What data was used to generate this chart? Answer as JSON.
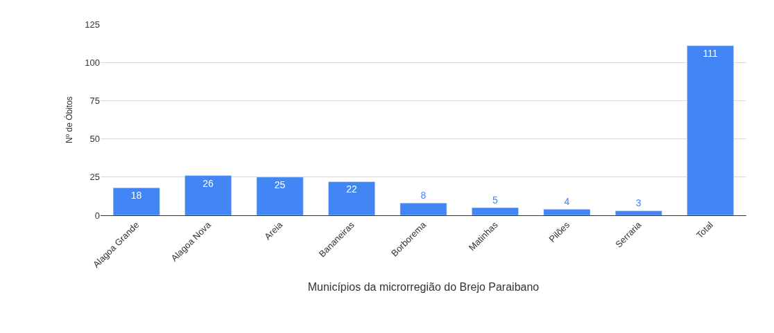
{
  "chart_data": {
    "type": "bar",
    "xlabel": "Municípios da microrregião do Brejo Paraibano",
    "ylabel": "Nº de Óbitos",
    "categories": [
      "Alagoa Grande",
      "Alagoa Nova",
      "Areia",
      "Bananeiras",
      "Borborema",
      "Matinhas",
      "Pilões",
      "Serraria",
      "Total"
    ],
    "values": [
      18,
      26,
      25,
      22,
      8,
      5,
      4,
      3,
      111
    ],
    "color": "#4285f4",
    "ylim": [
      0,
      125
    ],
    "yticks": [
      0,
      25,
      50,
      75,
      100,
      125
    ],
    "grid": "y",
    "data_labels": true
  }
}
